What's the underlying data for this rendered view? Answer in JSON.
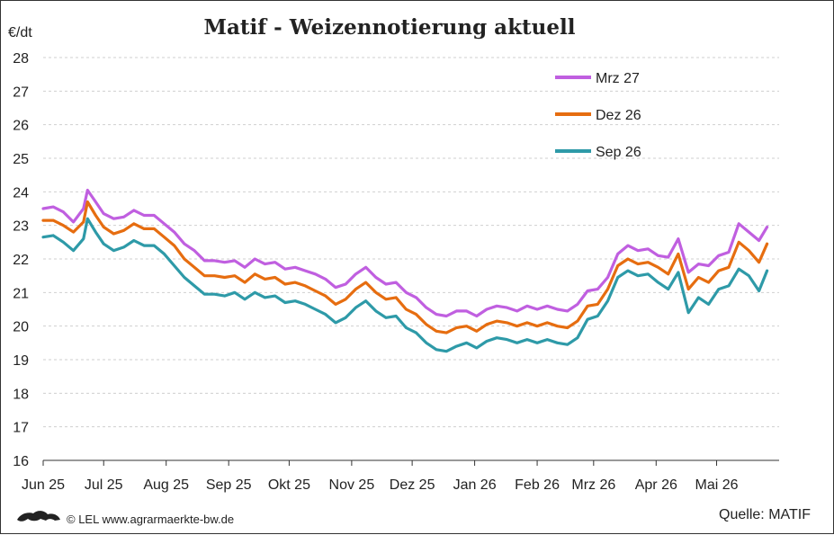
{
  "chart_data": {
    "type": "line",
    "title": "Matif - Weizennotierung aktuell",
    "unit_label": "€/dt",
    "ylim": [
      16,
      28
    ],
    "y_ticks": [
      16,
      17,
      18,
      19,
      20,
      21,
      22,
      23,
      24,
      25,
      26,
      27,
      28
    ],
    "x_ticks": [
      "Jun 25",
      "Jul 25",
      "Aug 25",
      "Sep 25",
      "Okt 25",
      "Nov 25",
      "Dez 25",
      "Jan 26",
      "Feb 26",
      "Mrz 26",
      "Apr 26",
      "Mai 26"
    ],
    "grid": true,
    "legend_position": "top-right",
    "series": [
      {
        "name": "Mrz 27",
        "color": "#c05fe0",
        "x": [
          "2025-06-01",
          "2025-06-06",
          "2025-06-11",
          "2025-06-16",
          "2025-06-21",
          "2025-06-23",
          "2025-06-27",
          "2025-07-01",
          "2025-07-06",
          "2025-07-11",
          "2025-07-16",
          "2025-07-21",
          "2025-07-26",
          "2025-07-31",
          "2025-08-05",
          "2025-08-10",
          "2025-08-15",
          "2025-08-20",
          "2025-08-25",
          "2025-08-30",
          "2025-09-04",
          "2025-09-09",
          "2025-09-14",
          "2025-09-19",
          "2025-09-24",
          "2025-09-29",
          "2025-10-04",
          "2025-10-09",
          "2025-10-14",
          "2025-10-19",
          "2025-10-24",
          "2025-10-29",
          "2025-11-03",
          "2025-11-08",
          "2025-11-13",
          "2025-11-18",
          "2025-11-23",
          "2025-11-28",
          "2025-12-03",
          "2025-12-08",
          "2025-12-13",
          "2025-12-18",
          "2025-12-23",
          "2025-12-28",
          "2026-01-02",
          "2026-01-07",
          "2026-01-12",
          "2026-01-17",
          "2026-01-22",
          "2026-01-27",
          "2026-02-01",
          "2026-02-06",
          "2026-02-11",
          "2026-02-16",
          "2026-02-21",
          "2026-02-26",
          "2026-03-03",
          "2026-03-08",
          "2026-03-13",
          "2026-03-18",
          "2026-03-23",
          "2026-03-28",
          "2026-04-02",
          "2026-04-07",
          "2026-04-12",
          "2026-04-17",
          "2026-04-22",
          "2026-04-27",
          "2026-05-02",
          "2026-05-07",
          "2026-05-12",
          "2026-05-17",
          "2026-05-22",
          "2026-05-26"
        ],
        "y": [
          23.5,
          23.55,
          23.4,
          23.1,
          23.5,
          24.05,
          23.7,
          23.35,
          23.2,
          23.25,
          23.45,
          23.3,
          23.3,
          23.05,
          22.8,
          22.45,
          22.25,
          21.95,
          21.95,
          21.9,
          21.95,
          21.75,
          22.0,
          21.85,
          21.9,
          21.7,
          21.75,
          21.65,
          21.55,
          21.4,
          21.15,
          21.25,
          21.55,
          21.75,
          21.45,
          21.25,
          21.3,
          21.0,
          20.85,
          20.55,
          20.35,
          20.3,
          20.45,
          20.45,
          20.3,
          20.5,
          20.6,
          20.55,
          20.45,
          20.6,
          20.5,
          20.6,
          20.5,
          20.45,
          20.65,
          21.05,
          21.1,
          21.45,
          22.15,
          22.4,
          22.25,
          22.3,
          22.1,
          22.05,
          22.6,
          21.6,
          21.85,
          21.8,
          22.1,
          22.2,
          23.05,
          22.8,
          22.55,
          22.95
        ]
      },
      {
        "name": "Dez 26",
        "color": "#e66d10",
        "x": [
          "2025-06-01",
          "2025-06-06",
          "2025-06-11",
          "2025-06-16",
          "2025-06-21",
          "2025-06-23",
          "2025-06-27",
          "2025-07-01",
          "2025-07-06",
          "2025-07-11",
          "2025-07-16",
          "2025-07-21",
          "2025-07-26",
          "2025-07-31",
          "2025-08-05",
          "2025-08-10",
          "2025-08-15",
          "2025-08-20",
          "2025-08-25",
          "2025-08-30",
          "2025-09-04",
          "2025-09-09",
          "2025-09-14",
          "2025-09-19",
          "2025-09-24",
          "2025-09-29",
          "2025-10-04",
          "2025-10-09",
          "2025-10-14",
          "2025-10-19",
          "2025-10-24",
          "2025-10-29",
          "2025-11-03",
          "2025-11-08",
          "2025-11-13",
          "2025-11-18",
          "2025-11-23",
          "2025-11-28",
          "2025-12-03",
          "2025-12-08",
          "2025-12-13",
          "2025-12-18",
          "2025-12-23",
          "2025-12-28",
          "2026-01-02",
          "2026-01-07",
          "2026-01-12",
          "2026-01-17",
          "2026-01-22",
          "2026-01-27",
          "2026-02-01",
          "2026-02-06",
          "2026-02-11",
          "2026-02-16",
          "2026-02-21",
          "2026-02-26",
          "2026-03-03",
          "2026-03-08",
          "2026-03-13",
          "2026-03-18",
          "2026-03-23",
          "2026-03-28",
          "2026-04-02",
          "2026-04-07",
          "2026-04-12",
          "2026-04-17",
          "2026-04-22",
          "2026-04-27",
          "2026-05-02",
          "2026-05-07",
          "2026-05-12",
          "2026-05-17",
          "2026-05-22",
          "2026-05-26"
        ],
        "y": [
          23.15,
          23.15,
          23.0,
          22.8,
          23.1,
          23.7,
          23.3,
          22.95,
          22.75,
          22.85,
          23.05,
          22.9,
          22.9,
          22.65,
          22.4,
          22.0,
          21.75,
          21.5,
          21.5,
          21.45,
          21.5,
          21.3,
          21.55,
          21.4,
          21.45,
          21.25,
          21.3,
          21.2,
          21.05,
          20.9,
          20.65,
          20.8,
          21.1,
          21.3,
          21.0,
          20.8,
          20.85,
          20.5,
          20.35,
          20.05,
          19.85,
          19.8,
          19.95,
          20.0,
          19.85,
          20.05,
          20.15,
          20.1,
          20.0,
          20.1,
          20.0,
          20.1,
          20.0,
          19.95,
          20.15,
          20.6,
          20.65,
          21.1,
          21.8,
          22.0,
          21.85,
          21.9,
          21.75,
          21.55,
          22.15,
          21.1,
          21.45,
          21.3,
          21.65,
          21.75,
          22.5,
          22.25,
          21.9,
          22.45
        ]
      },
      {
        "name": "Sep 26",
        "color": "#2e9aa8",
        "x": [
          "2025-06-01",
          "2025-06-06",
          "2025-06-11",
          "2025-06-16",
          "2025-06-21",
          "2025-06-23",
          "2025-06-27",
          "2025-07-01",
          "2025-07-06",
          "2025-07-11",
          "2025-07-16",
          "2025-07-21",
          "2025-07-26",
          "2025-07-31",
          "2025-08-05",
          "2025-08-10",
          "2025-08-15",
          "2025-08-20",
          "2025-08-25",
          "2025-08-30",
          "2025-09-04",
          "2025-09-09",
          "2025-09-14",
          "2025-09-19",
          "2025-09-24",
          "2025-09-29",
          "2025-10-04",
          "2025-10-09",
          "2025-10-14",
          "2025-10-19",
          "2025-10-24",
          "2025-10-29",
          "2025-11-03",
          "2025-11-08",
          "2025-11-13",
          "2025-11-18",
          "2025-11-23",
          "2025-11-28",
          "2025-12-03",
          "2025-12-08",
          "2025-12-13",
          "2025-12-18",
          "2025-12-23",
          "2025-12-28",
          "2026-01-02",
          "2026-01-07",
          "2026-01-12",
          "2026-01-17",
          "2026-01-22",
          "2026-01-27",
          "2026-02-01",
          "2026-02-06",
          "2026-02-11",
          "2026-02-16",
          "2026-02-21",
          "2026-02-26",
          "2026-03-03",
          "2026-03-08",
          "2026-03-13",
          "2026-03-18",
          "2026-03-23",
          "2026-03-28",
          "2026-04-02",
          "2026-04-07",
          "2026-04-12",
          "2026-04-17",
          "2026-04-22",
          "2026-04-27",
          "2026-05-02",
          "2026-05-07",
          "2026-05-12",
          "2026-05-17",
          "2026-05-22",
          "2026-05-26"
        ],
        "y": [
          22.65,
          22.7,
          22.5,
          22.25,
          22.6,
          23.2,
          22.8,
          22.45,
          22.25,
          22.35,
          22.55,
          22.4,
          22.4,
          22.15,
          21.8,
          21.45,
          21.2,
          20.95,
          20.95,
          20.9,
          21.0,
          20.8,
          21.0,
          20.85,
          20.9,
          20.7,
          20.75,
          20.65,
          20.5,
          20.35,
          20.1,
          20.25,
          20.55,
          20.75,
          20.45,
          20.25,
          20.3,
          19.95,
          19.8,
          19.5,
          19.3,
          19.25,
          19.4,
          19.5,
          19.35,
          19.55,
          19.65,
          19.6,
          19.5,
          19.6,
          19.5,
          19.6,
          19.5,
          19.45,
          19.65,
          20.2,
          20.3,
          20.75,
          21.45,
          21.65,
          21.5,
          21.55,
          21.3,
          21.1,
          21.6,
          20.4,
          20.85,
          20.65,
          21.1,
          21.2,
          21.7,
          21.5,
          21.05,
          21.65
        ]
      }
    ]
  },
  "footer": {
    "credit": "© LEL www.agrarmaerkte-bw.de",
    "source": "Quelle: MATIF"
  }
}
